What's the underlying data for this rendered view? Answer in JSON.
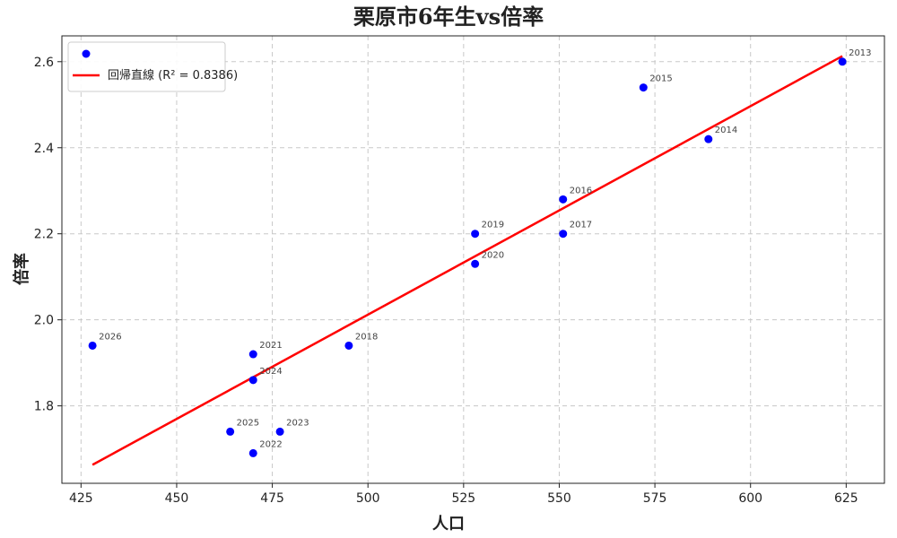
{
  "chart_data": {
    "type": "scatter",
    "title": "栗原市6年生vs倍率",
    "xlabel": "人口",
    "ylabel": "倍率",
    "xlim": [
      420,
      635
    ],
    "ylim": [
      1.62,
      2.66
    ],
    "xticks": [
      425,
      450,
      475,
      500,
      525,
      550,
      575,
      600,
      625
    ],
    "yticks": [
      1.8,
      2.0,
      2.2,
      2.4,
      2.6
    ],
    "grid": true,
    "legend_placement": "top-left",
    "point_color": "#0000ff",
    "fit_color": "#ff0000",
    "series": [
      {
        "points": [
          {
            "label": "2013",
            "x": 624,
            "y": 2.6
          },
          {
            "label": "2014",
            "x": 589,
            "y": 2.42
          },
          {
            "label": "2015",
            "x": 572,
            "y": 2.54
          },
          {
            "label": "2016",
            "x": 551,
            "y": 2.28
          },
          {
            "label": "2017",
            "x": 551,
            "y": 2.2
          },
          {
            "label": "2018",
            "x": 495,
            "y": 1.94
          },
          {
            "label": "2019",
            "x": 528,
            "y": 2.2
          },
          {
            "label": "2020",
            "x": 528,
            "y": 2.13
          },
          {
            "label": "2021",
            "x": 470,
            "y": 1.92
          },
          {
            "label": "2022",
            "x": 470,
            "y": 1.69
          },
          {
            "label": "2023",
            "x": 477,
            "y": 1.74
          },
          {
            "label": "2024",
            "x": 470,
            "y": 1.86
          },
          {
            "label": "2025",
            "x": 464,
            "y": 1.74
          },
          {
            "label": "2026",
            "x": 428,
            "y": 1.94
          }
        ]
      },
      {
        "type": "line",
        "name": "回帰直線 (R² = 0.8386)",
        "points": [
          {
            "x": 428,
            "y": 1.663
          },
          {
            "x": 624,
            "y": 2.613
          }
        ]
      }
    ]
  }
}
